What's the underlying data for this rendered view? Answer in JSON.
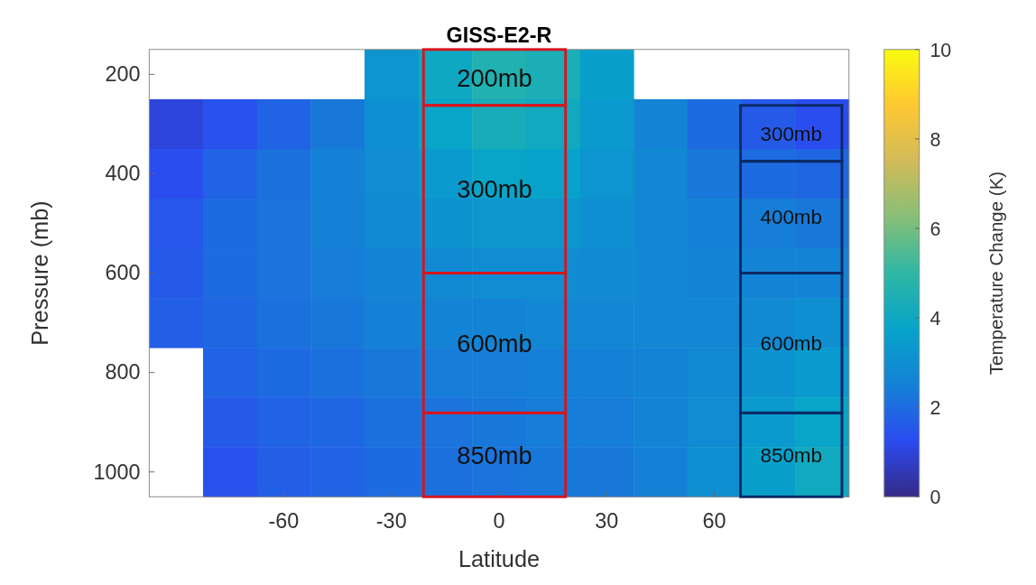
{
  "chart_data": {
    "type": "heatmap",
    "title": "GISS-E2-R",
    "xlabel": "Latitude",
    "ylabel": "Pressure (mb)",
    "clabel": "Temperature Change (K)",
    "categories": [
      null,
      null,
      "-60",
      null,
      "-30",
      null,
      "0",
      null,
      "30",
      null,
      "60",
      null,
      null
    ],
    "y_categories": [
      "200",
      null,
      "400",
      null,
      "600",
      null,
      "800",
      null,
      "1000"
    ],
    "cells": [
      [
        null,
        null,
        null,
        null,
        3.2,
        4.0,
        4.6,
        4.4,
        3.6,
        null,
        null,
        null,
        null
      ],
      [
        1.0,
        1.4,
        1.8,
        2.3,
        3.0,
        3.8,
        4.3,
        4.1,
        3.4,
        2.6,
        2.0,
        1.6,
        1.3
      ],
      [
        1.3,
        1.8,
        2.1,
        2.5,
        2.9,
        3.4,
        3.8,
        3.7,
        3.2,
        2.7,
        2.3,
        2.0,
        1.9
      ],
      [
        1.5,
        2.0,
        2.2,
        2.5,
        2.8,
        3.1,
        3.3,
        3.3,
        3.0,
        2.7,
        2.5,
        2.4,
        2.3
      ],
      [
        1.6,
        2.0,
        2.2,
        2.4,
        2.6,
        2.8,
        2.9,
        2.9,
        2.8,
        2.7,
        2.6,
        2.6,
        2.6
      ],
      [
        1.7,
        1.9,
        2.1,
        2.3,
        2.5,
        2.6,
        2.6,
        2.7,
        2.7,
        2.7,
        2.7,
        2.8,
        3.0
      ],
      [
        null,
        1.8,
        2.0,
        2.1,
        2.3,
        2.4,
        2.4,
        2.5,
        2.5,
        2.6,
        2.8,
        3.1,
        3.4
      ],
      [
        null,
        1.6,
        1.8,
        1.9,
        2.1,
        2.2,
        2.3,
        2.4,
        2.4,
        2.6,
        2.9,
        3.4,
        3.8
      ],
      [
        null,
        1.4,
        1.7,
        1.8,
        2.0,
        2.1,
        2.2,
        2.3,
        2.3,
        2.5,
        3.0,
        3.6,
        4.1
      ]
    ],
    "clim": [
      0,
      10
    ],
    "cticks": [
      0,
      2,
      4,
      6,
      8,
      10
    ],
    "annotations": [
      "200mb",
      "300mb",
      "600mb",
      "850mb",
      "300mb",
      "400mb",
      "600mb",
      "850mb"
    ]
  }
}
